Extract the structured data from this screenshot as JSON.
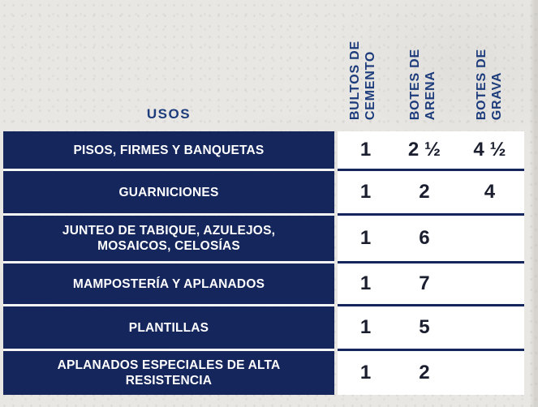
{
  "colors": {
    "page_background": "#e9e7e3",
    "row_label_background": "#14265c",
    "row_label_text": "#ffffff",
    "column_header_text": "#1d3c7c",
    "value_text": "#1a1e2e",
    "values_panel_background": "#ffffff"
  },
  "chart_data": {
    "type": "table",
    "corner_header": "USOS",
    "columns": [
      {
        "label": "BULTOS DE CEMENTO",
        "display": "BULTOS DE\nCEMENTO"
      },
      {
        "label": "BOTES DE ARENA",
        "display": "BOTES DE\nARENA"
      },
      {
        "label": "BOTES DE GRAVA",
        "display": "BOTES DE\nGRAVA"
      }
    ],
    "rows": [
      {
        "uso": "PISOS, FIRMES Y BANQUETAS",
        "uso_display": "PISOS, FIRMES Y BANQUETAS",
        "cemento": "1",
        "arena": "2 ½",
        "grava": "4 ½"
      },
      {
        "uso": "GUARNICIONES",
        "uso_display": "GUARNICIONES",
        "cemento": "1",
        "arena": "2",
        "grava": "4"
      },
      {
        "uso": "JUNTEO DE TABIQUE, AZULEJOS, MOSAICOS, CELOSÍAS",
        "uso_display": "JUNTEO DE TABIQUE, AZULEJOS,\nMOSAICOS, CELOSÍAS",
        "cemento": "1",
        "arena": "6",
        "grava": ""
      },
      {
        "uso": "MAMPOSTERÍA Y APLANADOS",
        "uso_display": "MAMPOSTERÍA Y APLANADOS",
        "cemento": "1",
        "arena": "7",
        "grava": ""
      },
      {
        "uso": "PLANTILLAS",
        "uso_display": "PLANTILLAS",
        "cemento": "1",
        "arena": "5",
        "grava": ""
      },
      {
        "uso": "APLANADOS ESPECIALES DE ALTA RESISTENCIA",
        "uso_display": "APLANADOS ESPECIALES DE ALTA\nRESISTENCIA",
        "cemento": "1",
        "arena": "2",
        "grava": ""
      }
    ]
  }
}
